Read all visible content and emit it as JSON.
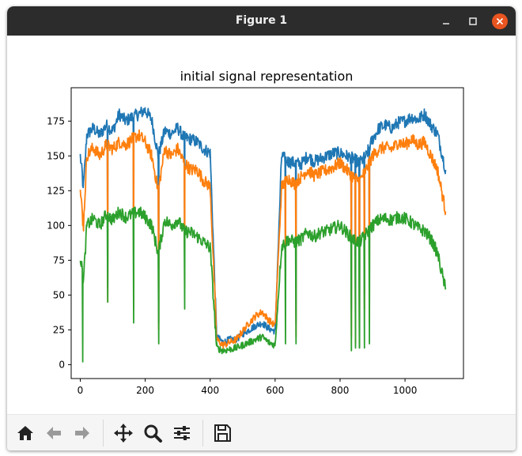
{
  "window": {
    "title": "Figure 1",
    "controls": [
      "minimize-icon",
      "maximize-icon",
      "close-icon"
    ]
  },
  "toolbar": {
    "buttons": [
      {
        "icon": "home-icon",
        "enabled": true
      },
      {
        "icon": "back-arrow-icon",
        "enabled": false
      },
      {
        "icon": "forward-arrow-icon",
        "enabled": false
      },
      {
        "icon": "pan-icon",
        "enabled": true
      },
      {
        "icon": "zoom-icon",
        "enabled": true
      },
      {
        "icon": "subplots-config-icon",
        "enabled": true
      },
      {
        "icon": "save-icon",
        "enabled": true
      }
    ]
  },
  "chart_data": {
    "type": "line",
    "title": "initial signal representation",
    "xlabel": "",
    "ylabel": "",
    "xlim": [
      -28,
      1180
    ],
    "ylim": [
      -10,
      199
    ],
    "xticks": [
      0,
      200,
      400,
      600,
      800,
      1000
    ],
    "yticks": [
      0,
      25,
      50,
      75,
      100,
      125,
      150,
      175
    ],
    "grid": false,
    "legend": "none",
    "colors": [
      "#1f77b4",
      "#ff7f0e",
      "#2ca02c"
    ],
    "series": [
      {
        "color": "#1f77b4",
        "x": [
          0,
          10,
          20,
          40,
          60,
          80,
          100,
          120,
          140,
          160,
          180,
          200,
          220,
          240,
          260,
          280,
          300,
          320,
          340,
          360,
          380,
          400,
          420,
          440,
          460,
          480,
          500,
          520,
          540,
          560,
          580,
          600,
          620,
          640,
          660,
          680,
          700,
          720,
          740,
          760,
          780,
          800,
          820,
          840,
          860,
          880,
          900,
          920,
          940,
          960,
          980,
          1000,
          1020,
          1040,
          1060,
          1080,
          1100,
          1125
        ],
        "y": [
          150,
          128,
          165,
          170,
          165,
          172,
          168,
          180,
          175,
          178,
          180,
          183,
          176,
          150,
          168,
          166,
          170,
          163,
          162,
          160,
          155,
          152,
          20,
          16,
          18,
          18,
          22,
          25,
          28,
          30,
          26,
          24,
          150,
          146,
          145,
          144,
          150,
          146,
          148,
          150,
          152,
          152,
          150,
          148,
          145,
          150,
          162,
          170,
          172,
          170,
          174,
          175,
          178,
          176,
          180,
          172,
          166,
          140
        ]
      },
      {
        "color": "#ff7f0e",
        "x": [
          0,
          10,
          20,
          40,
          60,
          80,
          100,
          120,
          140,
          160,
          180,
          200,
          220,
          240,
          260,
          280,
          300,
          320,
          340,
          360,
          380,
          400,
          420,
          440,
          460,
          480,
          500,
          520,
          540,
          560,
          580,
          600,
          620,
          640,
          660,
          680,
          700,
          720,
          740,
          760,
          780,
          800,
          820,
          840,
          860,
          880,
          900,
          920,
          940,
          960,
          980,
          1000,
          1020,
          1040,
          1060,
          1080,
          1100,
          1125
        ],
        "y": [
          125,
          100,
          150,
          156,
          150,
          158,
          155,
          160,
          158,
          162,
          165,
          160,
          150,
          125,
          155,
          150,
          155,
          145,
          140,
          140,
          132,
          128,
          18,
          14,
          16,
          18,
          24,
          30,
          35,
          38,
          32,
          28,
          128,
          134,
          130,
          135,
          140,
          136,
          138,
          140,
          142,
          145,
          140,
          135,
          132,
          140,
          150,
          155,
          156,
          155,
          160,
          158,
          162,
          158,
          160,
          150,
          140,
          110
        ]
      },
      {
        "color": "#2ca02c",
        "x": [
          0,
          10,
          20,
          40,
          60,
          80,
          100,
          120,
          140,
          160,
          180,
          200,
          220,
          240,
          260,
          280,
          300,
          320,
          340,
          360,
          380,
          400,
          420,
          440,
          460,
          480,
          500,
          520,
          540,
          560,
          580,
          600,
          620,
          640,
          660,
          680,
          700,
          720,
          740,
          760,
          780,
          800,
          820,
          840,
          860,
          880,
          900,
          920,
          940,
          960,
          980,
          1000,
          1020,
          1040,
          1060,
          1080,
          1100,
          1125
        ],
        "y": [
          78,
          60,
          100,
          105,
          100,
          108,
          104,
          110,
          106,
          108,
          110,
          106,
          100,
          80,
          104,
          100,
          104,
          96,
          95,
          92,
          88,
          84,
          12,
          10,
          11,
          12,
          14,
          16,
          18,
          20,
          16,
          14,
          85,
          90,
          88,
          90,
          95,
          92,
          95,
          96,
          98,
          100,
          95,
          90,
          88,
          94,
          100,
          104,
          105,
          104,
          106,
          105,
          102,
          98,
          96,
          90,
          80,
          54
        ]
      }
    ],
    "dips": [
      {
        "x": 8,
        "values": [
          128,
          100,
          2
        ]
      },
      {
        "x": 85,
        "values": [
          55,
          45,
          45
        ]
      },
      {
        "x": 165,
        "values": [
          60,
          40,
          30
        ]
      },
      {
        "x": 242,
        "values": [
          30,
          25,
          15
        ]
      },
      {
        "x": 322,
        "values": [
          70,
          55,
          40
        ]
      },
      {
        "x": 632,
        "values": [
          60,
          45,
          15
        ]
      },
      {
        "x": 665,
        "values": [
          30,
          20,
          15
        ]
      },
      {
        "x": 835,
        "values": [
          40,
          20,
          10
        ]
      },
      {
        "x": 848,
        "values": [
          25,
          15,
          12
        ]
      },
      {
        "x": 860,
        "values": [
          30,
          20,
          12
        ]
      },
      {
        "x": 875,
        "values": [
          50,
          40,
          12
        ]
      },
      {
        "x": 890,
        "values": [
          40,
          30,
          15
        ]
      }
    ]
  }
}
